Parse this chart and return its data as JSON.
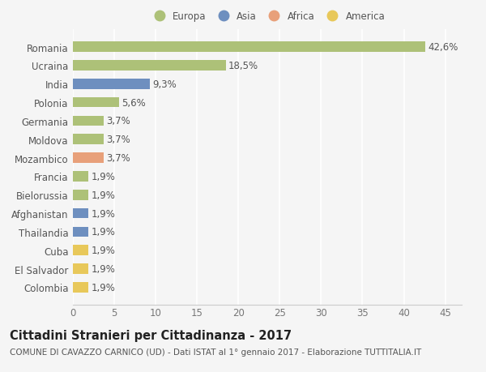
{
  "categories": [
    "Romania",
    "Ucraina",
    "India",
    "Polonia",
    "Germania",
    "Moldova",
    "Mozambico",
    "Francia",
    "Bielorussia",
    "Afghanistan",
    "Thailandia",
    "Cuba",
    "El Salvador",
    "Colombia"
  ],
  "values": [
    42.6,
    18.5,
    9.3,
    5.6,
    3.7,
    3.7,
    3.7,
    1.9,
    1.9,
    1.9,
    1.9,
    1.9,
    1.9,
    1.9
  ],
  "labels": [
    "42,6%",
    "18,5%",
    "9,3%",
    "5,6%",
    "3,7%",
    "3,7%",
    "3,7%",
    "1,9%",
    "1,9%",
    "1,9%",
    "1,9%",
    "1,9%",
    "1,9%",
    "1,9%"
  ],
  "continents": [
    "Europa",
    "Europa",
    "Asia",
    "Europa",
    "Europa",
    "Europa",
    "Africa",
    "Europa",
    "Europa",
    "Asia",
    "Asia",
    "America",
    "America",
    "America"
  ],
  "colors": {
    "Europa": "#adc178",
    "Asia": "#6e8fbf",
    "Africa": "#e8a07a",
    "America": "#e8c85a"
  },
  "background_color": "#f5f5f5",
  "xlim": [
    0,
    47
  ],
  "xticks": [
    0,
    5,
    10,
    15,
    20,
    25,
    30,
    35,
    40,
    45
  ],
  "title": "Cittadini Stranieri per Cittadinanza - 2017",
  "subtitle": "COMUNE DI CAVAZZO CARNICO (UD) - Dati ISTAT al 1° gennaio 2017 - Elaborazione TUTTITALIA.IT",
  "bar_height": 0.55,
  "label_fontsize": 8.5,
  "tick_fontsize": 8.5,
  "title_fontsize": 10.5,
  "subtitle_fontsize": 7.5,
  "legend_order": [
    "Europa",
    "Asia",
    "Africa",
    "America"
  ]
}
